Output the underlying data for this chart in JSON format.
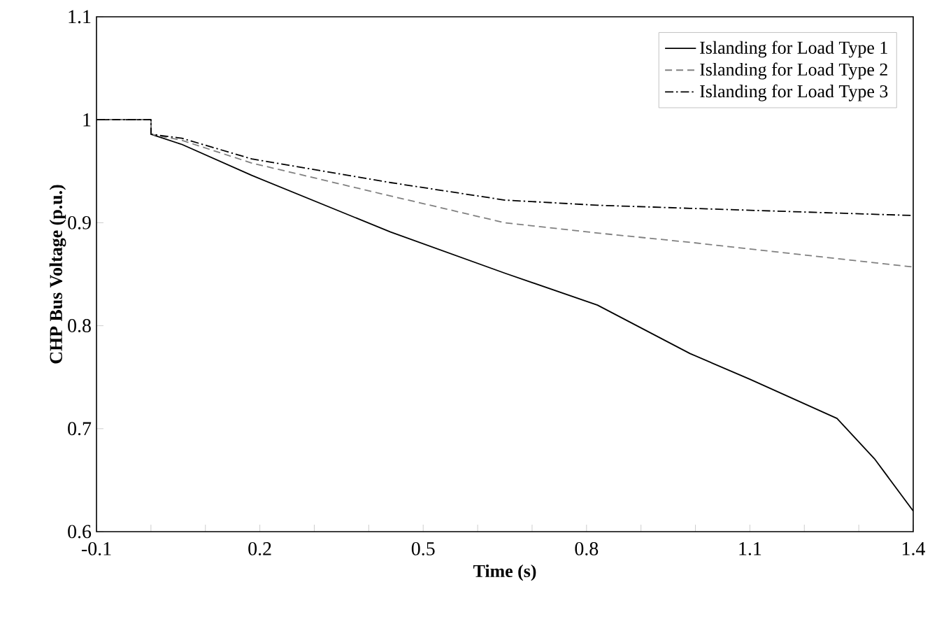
{
  "chart_data": {
    "type": "line",
    "xlabel": "Time (s)",
    "ylabel": "CHP Bus Voltage (p.u.)",
    "xlim": [
      -0.1,
      1.4
    ],
    "xticks": [
      -0.1,
      0.2,
      0.5,
      0.8,
      1.1,
      1.4
    ],
    "ylim": [
      0.6,
      1.1
    ],
    "yticks": [
      0.6,
      0.7,
      0.8,
      0.9,
      {
        "value": 1.0,
        "label": "1"
      },
      1.1
    ],
    "grid": false,
    "legend": "top right",
    "marker": "none",
    "series": [
      {
        "name": "Islanding for Load Type 1",
        "color": "#000000",
        "line_style": "solid",
        "x": [
          -0.1,
          0.0,
          0.0,
          0.057,
          0.185,
          0.44,
          0.65,
          0.82,
          0.99,
          1.1,
          1.26,
          1.33,
          1.4
        ],
        "values": [
          1.0,
          1.0,
          0.986,
          0.976,
          0.946,
          0.891,
          0.851,
          0.82,
          0.773,
          0.748,
          0.71,
          0.67,
          0.62
        ]
      },
      {
        "name": "Islanding for Load Type 2",
        "color": "#808080",
        "line_style": "dashed",
        "x": [
          -0.1,
          0.0,
          0.0,
          0.057,
          0.185,
          0.44,
          0.65,
          0.82,
          0.99,
          1.4
        ],
        "values": [
          1.0,
          1.0,
          0.986,
          0.98,
          0.958,
          0.926,
          0.9,
          0.89,
          0.881,
          0.857
        ]
      },
      {
        "name": "Islanding for Load Type 3",
        "color": "#000000",
        "line_style": "dashdot",
        "x": [
          -0.1,
          0.0,
          0.0,
          0.057,
          0.185,
          0.44,
          0.65,
          0.82,
          0.99,
          1.4
        ],
        "values": [
          1.0,
          1.0,
          0.986,
          0.982,
          0.962,
          0.939,
          0.922,
          0.917,
          0.914,
          0.907
        ]
      }
    ]
  }
}
